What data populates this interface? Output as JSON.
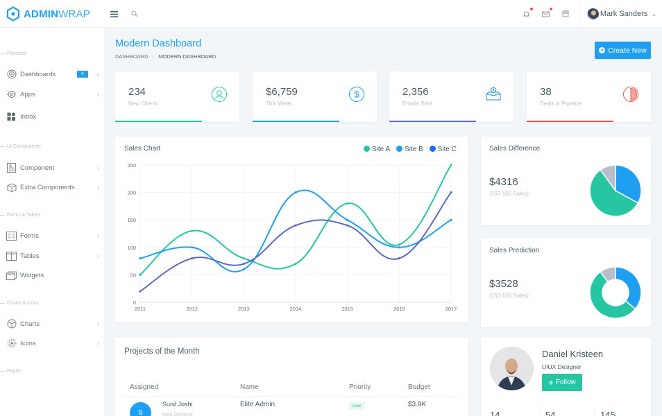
{
  "brand": {
    "bold": "ADMIN",
    "light": "WRAP"
  },
  "topbar": {
    "user_name": "Mark Sanders",
    "icons": [
      "menu-icon",
      "search-icon",
      "bell-icon",
      "mail-icon",
      "window-icon"
    ]
  },
  "sidebar": {
    "sections": [
      {
        "caption": "Personal",
        "items": [
          {
            "label": "Dashboards",
            "icon": "dashboard-icon",
            "badge": "4",
            "chevron": true
          },
          {
            "label": "Apps",
            "icon": "apps-icon",
            "chevron": true
          },
          {
            "label": "Inbox",
            "icon": "inbox-icon",
            "chevron": false
          }
        ]
      },
      {
        "caption": "UI Components",
        "items": [
          {
            "label": "Component",
            "icon": "component-icon",
            "chevron": true
          },
          {
            "label": "Extra Components",
            "icon": "box-icon",
            "chevron": true
          }
        ]
      },
      {
        "caption": "Forms & Tables",
        "items": [
          {
            "label": "Forms",
            "icon": "forms-icon",
            "chevron": true
          },
          {
            "label": "Tables",
            "icon": "tables-icon",
            "chevron": true
          },
          {
            "label": "Widgets",
            "icon": "widgets-icon",
            "chevron": false
          }
        ]
      },
      {
        "caption": "Charts & Icons",
        "items": [
          {
            "label": "Charts",
            "icon": "charts-icon",
            "chevron": true
          },
          {
            "label": "Icons",
            "icon": "gear-icon",
            "chevron": true
          }
        ]
      },
      {
        "caption": "Pages",
        "items": []
      }
    ]
  },
  "page": {
    "title": "Modern Dashboard",
    "breadcrumb": [
      "DASHBOARD",
      "MODERN DASHBOARD"
    ],
    "create_label": "Create New"
  },
  "stats": [
    {
      "value": "234",
      "label": "New Clients",
      "color": "#26c6a2",
      "icon": "user-circle-icon",
      "progress": 0.7
    },
    {
      "value": "$6,759",
      "label": "This Week",
      "color": "#1e9ff2",
      "icon": "dollar-circle-icon",
      "progress": 0.7
    },
    {
      "value": "2,356",
      "label": "Emails Sent",
      "color": "#5c6bc0",
      "icon": "inbox-tray-icon",
      "progress": 0.7
    },
    {
      "value": "38",
      "label": "Deals in Pipeline",
      "color": "#ef5350",
      "icon": "half-circle-icon",
      "progress": 0.7
    }
  ],
  "sales_chart": {
    "title": "Sales Chart",
    "legend": [
      {
        "name": "Site A",
        "color": "#26c6a2"
      },
      {
        "name": "Site B",
        "color": "#1e9ff2"
      },
      {
        "name": "Site C",
        "color": "#5c6bc0"
      }
    ]
  },
  "sales_difference": {
    "title": "Sales Difference",
    "value": "$4316",
    "sub": "(150-165 Sales)"
  },
  "sales_prediction": {
    "title": "Sales Prediction",
    "value": "$3528",
    "sub": "(150-165 Sales)"
  },
  "projects": {
    "title": "Projects of the Month",
    "columns": [
      "Assigned",
      "Name",
      "Priority",
      "Budget"
    ],
    "rows": [
      {
        "initial": "S",
        "assignee": "Sunil Joshi",
        "role": "Web Designer",
        "name": "Elite Admin",
        "priority": "Low",
        "budget": "$3.9K"
      }
    ]
  },
  "profile": {
    "name": "Daniel Kristeen",
    "role": "UIUX Designer",
    "follow_label": "Follow",
    "stats": [
      "14",
      "54",
      "145"
    ]
  },
  "chart_data": [
    {
      "type": "line",
      "title": "Sales Chart",
      "categories": [
        "2011",
        "2012",
        "2013",
        "2014",
        "2015",
        "2016",
        "2017"
      ],
      "series": [
        {
          "name": "Site A",
          "color": "#26c6a2",
          "values": [
            50,
            130,
            80,
            70,
            180,
            105,
            250
          ]
        },
        {
          "name": "Site B",
          "color": "#1e9ff2",
          "values": [
            80,
            100,
            60,
            200,
            150,
            100,
            150
          ]
        },
        {
          "name": "Site C",
          "color": "#5c6bc0",
          "values": [
            20,
            80,
            70,
            140,
            140,
            80,
            200
          ]
        }
      ],
      "ylim": [
        0,
        250
      ],
      "yticks": [
        0,
        50,
        100,
        150,
        200,
        250
      ],
      "grid": true,
      "legend_position": "top-right"
    },
    {
      "type": "pie",
      "title": "Sales Difference",
      "labels": [
        "Blue",
        "Teal",
        "Grey"
      ],
      "values": [
        33,
        57,
        10
      ],
      "colors": [
        "#1e9ff2",
        "#26c6a2",
        "#b8bfcb"
      ]
    },
    {
      "type": "pie",
      "title": "Sales Prediction",
      "donut": true,
      "labels": [
        "Blue",
        "Teal",
        "Grey"
      ],
      "values": [
        36,
        54,
        10
      ],
      "colors": [
        "#1e9ff2",
        "#26c6a2",
        "#b8bfcb"
      ]
    }
  ]
}
